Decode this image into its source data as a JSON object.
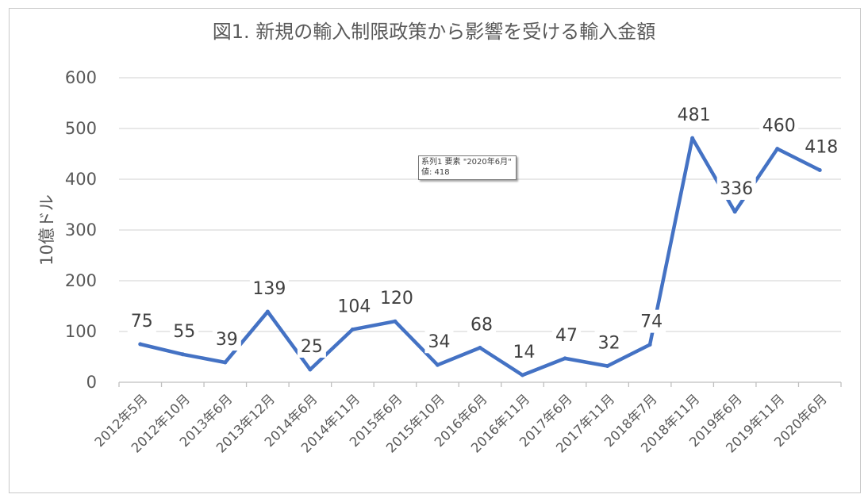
{
  "chart_data": {
    "type": "line",
    "title": "図1. 新規の輸入制限政策から影響を受ける輸入金額",
    "ylabel": "10億ドル",
    "xlabel": "",
    "ylim": [
      0,
      600
    ],
    "yticks": [
      "0",
      "100",
      "200",
      "300",
      "400",
      "500",
      "600"
    ],
    "grid": true,
    "categories": [
      "2012年5月",
      "2012年10月",
      "2013年6月",
      "2013年12月",
      "2014年6月",
      "2014年11月",
      "2015年6月",
      "2015年10月",
      "2016年6月",
      "2016年11月",
      "2017年6月",
      "2017年11月",
      "2018年7月",
      "2018年11月",
      "2019年6月",
      "2019年11月",
      "2020年6月"
    ],
    "series": [
      {
        "values": [
          75,
          55,
          39,
          139,
          25,
          104,
          120,
          34,
          68,
          14,
          47,
          32,
          74,
          481,
          336,
          460,
          418
        ],
        "color": "#4472C4"
      }
    ]
  },
  "tooltip": {
    "line1": "系列1 要素 \"2020年6月\"",
    "line2": "値: 418"
  }
}
